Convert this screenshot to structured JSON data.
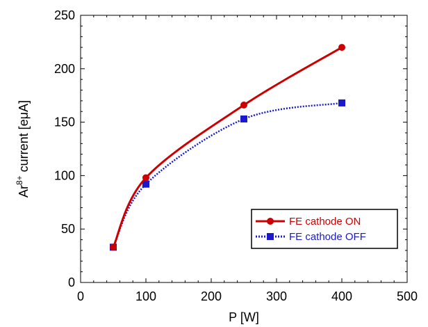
{
  "chart_data": {
    "type": "line",
    "title": "",
    "xlabel": "P [W]",
    "ylabel": {
      "base": "Ar",
      "superscript": "8+",
      "rest": " current [eμA]"
    },
    "xlim": [
      0,
      500
    ],
    "ylim": [
      0,
      250
    ],
    "xticks": [
      0,
      100,
      200,
      300,
      400,
      500
    ],
    "yticks": [
      0,
      50,
      100,
      150,
      200,
      250
    ],
    "grid": false,
    "legend_position": "bottom-right",
    "series": [
      {
        "name": "FE cathode ON",
        "color": "#cc0000",
        "marker": "circle",
        "line_style": "solid",
        "x": [
          50,
          100,
          250,
          400
        ],
        "y": [
          33,
          98,
          166,
          220
        ]
      },
      {
        "name": "FE cathode OFF",
        "color": "#1a1acc",
        "marker": "square",
        "line_style": "dotted",
        "x": [
          50,
          100,
          250,
          400
        ],
        "y": [
          33,
          92,
          153,
          168
        ]
      }
    ]
  }
}
